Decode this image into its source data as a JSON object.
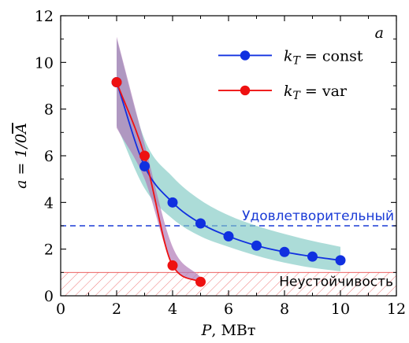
{
  "chart_data": {
    "type": "line",
    "panel_label": "a",
    "xlabel": {
      "italic": "P",
      "rest": ", МВт"
    },
    "ylabel": {
      "prefix": "a = 1/0",
      "overlined": "A"
    },
    "xlim": [
      0,
      12
    ],
    "ylim": [
      0,
      12
    ],
    "x_ticks": [
      0,
      2,
      4,
      6,
      8,
      10,
      12
    ],
    "y_ticks": [
      0,
      2,
      4,
      6,
      8,
      10,
      12
    ],
    "grid": false,
    "legend_position": "top-right",
    "series": [
      {
        "name": {
          "italic": "k",
          "sub": "T",
          "rest": " = const"
        },
        "color": "#1030e0",
        "x": [
          2,
          3,
          4,
          5,
          6,
          7,
          8,
          9,
          10
        ],
        "y": [
          9.15,
          5.55,
          4.0,
          3.1,
          2.55,
          2.15,
          1.88,
          1.68,
          1.52
        ],
        "band_color": "#7fcac3",
        "band_lower": [
          7.3,
          4.6,
          3.3,
          2.55,
          2.1,
          1.72,
          1.42,
          1.2,
          1.05
        ],
        "band_upper": [
          11.0,
          6.7,
          5.1,
          4.1,
          3.45,
          3.0,
          2.65,
          2.35,
          2.1
        ]
      },
      {
        "name": {
          "italic": "k",
          "sub": "T",
          "rest": " = var"
        },
        "color": "#ee1111",
        "x": [
          2,
          3,
          4,
          5
        ],
        "y": [
          9.15,
          6.0,
          1.3,
          0.6
        ],
        "band_color": "#b07ab8",
        "band_lower": [
          7.2,
          5.0,
          1.3,
          0.55
        ],
        "band_upper": [
          11.1,
          6.5,
          2.1,
          0.8
        ]
      }
    ],
    "annotations": [
      {
        "text": "Удовлетворительный",
        "y": 3.0,
        "color": "#1a3bd6",
        "style": "dashed-line"
      },
      {
        "text": "Неустойчивость",
        "y_range": [
          0,
          1.0
        ],
        "color": "#e84b4b",
        "style": "hatched-region"
      }
    ]
  }
}
